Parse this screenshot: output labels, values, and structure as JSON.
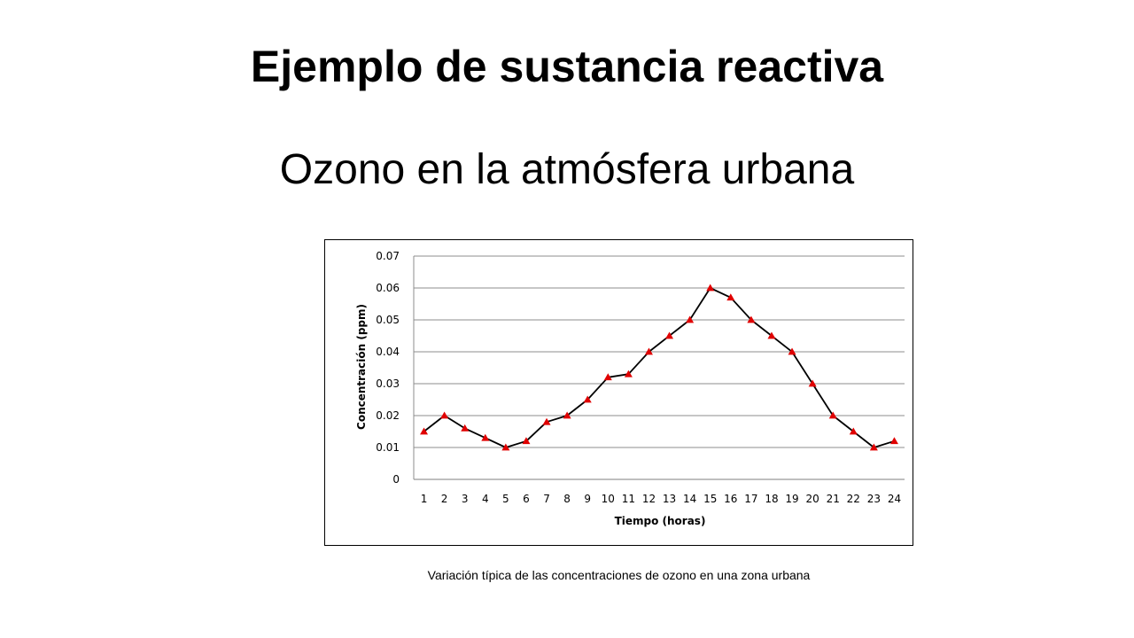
{
  "slide": {
    "title": "Ejemplo de sustancia reactiva",
    "subtitle": "Ozono en la atmósfera urbana",
    "caption": "Variación típica de las concentraciones de ozono en una zona urbana"
  },
  "chart_data": {
    "type": "line",
    "title": "",
    "xlabel": "Tiempo (horas)",
    "ylabel": "Concentración (ppm)",
    "categories": [
      "1",
      "2",
      "3",
      "4",
      "5",
      "6",
      "7",
      "8",
      "9",
      "10",
      "11",
      "12",
      "13",
      "14",
      "15",
      "16",
      "17",
      "18",
      "19",
      "20",
      "21",
      "22",
      "23",
      "24"
    ],
    "series": [
      {
        "values": [
          0.015,
          0.02,
          0.016,
          0.013,
          0.01,
          0.012,
          0.018,
          0.02,
          0.025,
          0.032,
          0.033,
          0.04,
          0.045,
          0.05,
          0.06,
          0.057,
          0.05,
          0.045,
          0.04,
          0.03,
          0.02,
          0.015,
          0.01,
          0.012
        ],
        "line_color": "#000000",
        "marker": "triangle",
        "marker_color": "#e00000"
      }
    ],
    "ylim": [
      0,
      0.07
    ],
    "yticks": [
      "0",
      "0.01",
      "0.02",
      "0.03",
      "0.04",
      "0.05",
      "0.06",
      "0.07"
    ],
    "grid": true,
    "legend": "none"
  }
}
